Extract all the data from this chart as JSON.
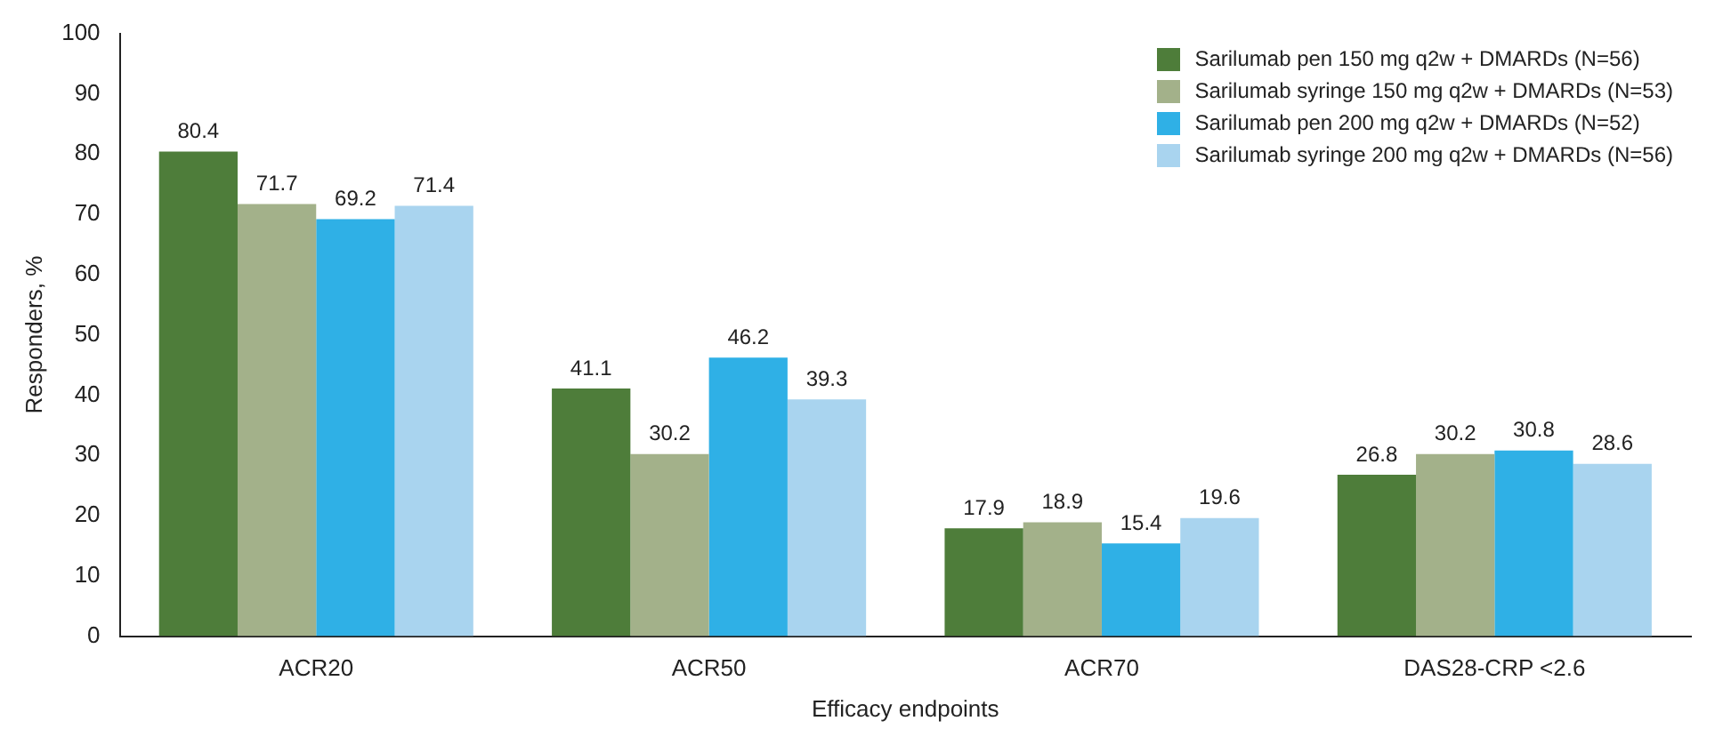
{
  "chart_data": {
    "type": "bar",
    "xlabel": "Efficacy endpoints",
    "ylabel": "Responders, %",
    "categories": [
      "ACR20",
      "ACR50",
      "ACR70",
      "DAS28-CRP <2.6"
    ],
    "series": [
      {
        "name": "Sarilumab pen 150 mg q2w + DMARDs (N=56)",
        "color": "#4e7d3a",
        "values": [
          80.4,
          41.1,
          17.9,
          26.8
        ]
      },
      {
        "name": "Sarilumab syringe 150 mg q2w + DMARDs (N=53)",
        "color": "#a3b18a",
        "values": [
          71.7,
          30.2,
          18.9,
          30.2
        ]
      },
      {
        "name": "Sarilumab pen 200 mg q2w + DMARDs (N=52)",
        "color": "#2fb0e6",
        "values": [
          69.2,
          46.2,
          15.4,
          30.8
        ]
      },
      {
        "name": "Sarilumab syringe 200 mg q2w + DMARDs (N=56)",
        "color": "#a9d4ef",
        "values": [
          71.4,
          39.3,
          19.6,
          28.6
        ]
      }
    ],
    "ylim": [
      0,
      100
    ],
    "yticks": [
      0,
      10,
      20,
      30,
      40,
      50,
      60,
      70,
      80,
      90,
      100
    ],
    "grid": false,
    "legend": "top right",
    "data_labels": true
  }
}
